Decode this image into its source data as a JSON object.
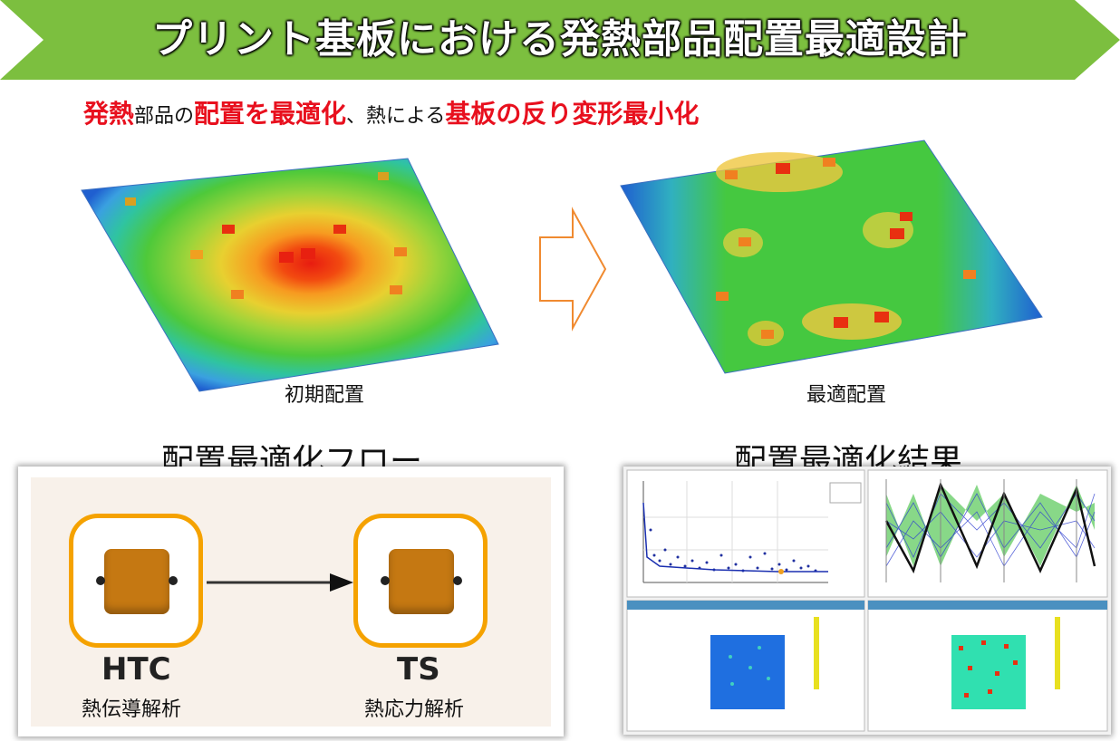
{
  "banner": {
    "title": "プリント基板における発熱部品配置最適設計",
    "color": "#7cbf3f"
  },
  "subtitle": {
    "segments": [
      {
        "text": "発熱",
        "highlight": true
      },
      {
        "text": "部品の",
        "highlight": false
      },
      {
        "text": "配置を最適化",
        "highlight": true
      },
      {
        "text": "、熱による",
        "highlight": false
      },
      {
        "text": "基板の反り変形最小化",
        "highlight": true
      }
    ]
  },
  "boards": {
    "initial_caption": "初期配置",
    "optimal_caption": "最適配置"
  },
  "flow": {
    "title": "配置最適化フロー",
    "nodes": [
      {
        "code": "HTC",
        "label": "熱伝導解析"
      },
      {
        "code": "TS",
        "label": "熱応力解析"
      }
    ]
  },
  "results": {
    "title": "配置最適化結果"
  }
}
